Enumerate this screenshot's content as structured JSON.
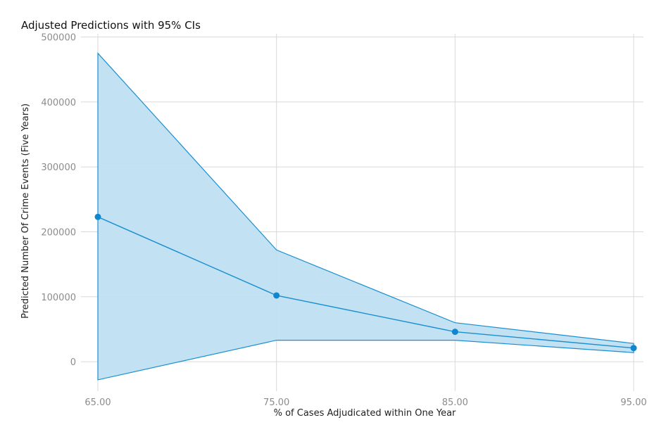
{
  "chart_data": {
    "type": "area",
    "title": "Adjusted Predictions with 95% CIs",
    "xlabel": "% of Cases Adjudicated within One Year",
    "ylabel": "Predicted Number Of Crime Events (Five Years)",
    "x": [
      65,
      75,
      85,
      95
    ],
    "x_tick_labels": [
      "65.00",
      "75.00",
      "85.00",
      "95.00"
    ],
    "y_ticks": [
      0,
      100000,
      200000,
      300000,
      400000,
      500000
    ],
    "y_tick_labels": [
      "0",
      "100000",
      "200000",
      "300000",
      "400000",
      "500000"
    ],
    "xlim": [
      65,
      95
    ],
    "ylim": [
      -40000,
      505000
    ],
    "grid": true,
    "series": [
      {
        "values": [
          223000,
          102000,
          46000,
          21000
        ],
        "ci_upper": [
          475000,
          172000,
          60000,
          28000
        ],
        "ci_lower": [
          -28000,
          33000,
          33000,
          14000
        ]
      }
    ],
    "colors": {
      "line": "#1a8fd0",
      "band_fill": "#bfe0f3",
      "point": "#0f87cf"
    }
  }
}
